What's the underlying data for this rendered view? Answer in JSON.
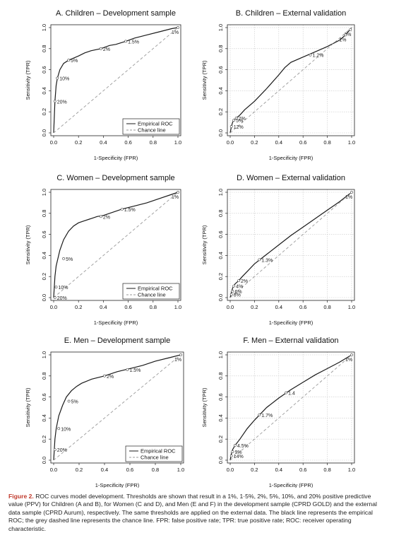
{
  "chart_data": [
    {
      "type": "line",
      "title": "A. Children – Development sample",
      "xlabel": "1-Specificity (FPR)",
      "ylabel": "Sensitivity (TPR)",
      "xlim": [
        0,
        1
      ],
      "ylim": [
        0,
        1
      ],
      "xticks": [
        "0.0",
        "0.2",
        "0.4",
        "0.6",
        "0.8",
        "1.0"
      ],
      "yticks": [
        "0.0",
        "0.2",
        "0.4",
        "0.6",
        "0.8",
        "1.0"
      ],
      "grid": false,
      "legend": {
        "position": "bottom-right",
        "entries": [
          "Empirical ROC",
          "Chance line"
        ]
      },
      "series": [
        {
          "name": "Empirical ROC",
          "x": [
            0,
            0.005,
            0.01,
            0.02,
            0.03,
            0.05,
            0.08,
            0.12,
            0.16,
            0.2,
            0.25,
            0.3,
            0.38,
            0.45,
            0.5,
            0.58,
            0.65,
            0.75,
            0.85,
            0.95,
            1.0
          ],
          "y": [
            0,
            0.15,
            0.3,
            0.45,
            0.52,
            0.6,
            0.66,
            0.69,
            0.71,
            0.73,
            0.76,
            0.78,
            0.8,
            0.83,
            0.84,
            0.87,
            0.9,
            0.93,
            0.96,
            0.99,
            1.0
          ]
        },
        {
          "name": "Chance line",
          "x": [
            0,
            1
          ],
          "y": [
            0,
            1
          ]
        }
      ],
      "thresholds": [
        {
          "label": "1%",
          "x": 1.0,
          "y": 1.0
        },
        {
          "label": "1.5%",
          "x": 0.58,
          "y": 0.87
        },
        {
          "label": "2%",
          "x": 0.38,
          "y": 0.8
        },
        {
          "label": "5%",
          "x": 0.12,
          "y": 0.69
        },
        {
          "label": "10%",
          "x": 0.03,
          "y": 0.52
        },
        {
          "label": "20%",
          "x": 0.01,
          "y": 0.3
        }
      ]
    },
    {
      "type": "line",
      "title": "B. Children – External validation",
      "xlabel": "1-Specificity (FPR)",
      "ylabel": "Sensitivity (TPR)",
      "xlim": [
        0,
        1
      ],
      "ylim": [
        0,
        1
      ],
      "xticks": [
        "0.0",
        "0.2",
        "0.4",
        "0.6",
        "0.8",
        "1.0"
      ],
      "yticks": [
        "0.0",
        "0.2",
        "0.4",
        "0.6",
        "0.8",
        "1.0"
      ],
      "grid": true,
      "series": [
        {
          "name": "Empirical ROC",
          "x": [
            0,
            0.01,
            0.02,
            0.03,
            0.05,
            0.08,
            0.12,
            0.2,
            0.3,
            0.4,
            0.45,
            0.5,
            0.6,
            0.7,
            0.8,
            0.9,
            0.95,
            1.0
          ],
          "y": [
            0,
            0.06,
            0.1,
            0.12,
            0.14,
            0.17,
            0.22,
            0.3,
            0.42,
            0.55,
            0.62,
            0.67,
            0.72,
            0.77,
            0.82,
            0.88,
            0.93,
            1.0
          ]
        },
        {
          "name": "Chance line",
          "x": [
            0,
            1
          ],
          "y": [
            0,
            1
          ]
        }
      ],
      "thresholds": [
        {
          "label": "1%",
          "x": 0.99,
          "y": 0.98
        },
        {
          "label": "1%",
          "x": 0.95,
          "y": 0.93
        },
        {
          "label": "1.2%",
          "x": 0.66,
          "y": 0.74
        },
        {
          "label": "2%",
          "x": 0.05,
          "y": 0.14
        },
        {
          "label": "5%",
          "x": 0.03,
          "y": 0.12
        },
        {
          "label": "12%",
          "x": 0.01,
          "y": 0.06
        }
      ]
    },
    {
      "type": "line",
      "title": "C. Women – Development sample",
      "xlabel": "1-Specificity (FPR)",
      "ylabel": "Sensitivity (TPR)",
      "xlim": [
        0,
        1
      ],
      "ylim": [
        0,
        1
      ],
      "xticks": [
        "0.0",
        "0.2",
        "0.4",
        "0.6",
        "0.8",
        "1.0"
      ],
      "yticks": [
        "0.0",
        "0.2",
        "0.4",
        "0.6",
        "0.8",
        "1.0"
      ],
      "grid": false,
      "legend": {
        "position": "bottom-right",
        "entries": [
          "Empirical ROC",
          "Chance line"
        ]
      },
      "series": [
        {
          "name": "Empirical ROC",
          "x": [
            0,
            0.005,
            0.01,
            0.02,
            0.05,
            0.08,
            0.12,
            0.16,
            0.2,
            0.25,
            0.3,
            0.35,
            0.4,
            0.5,
            0.55,
            0.65,
            0.75,
            0.85,
            0.95,
            1.0
          ],
          "y": [
            0,
            0.1,
            0.2,
            0.3,
            0.45,
            0.55,
            0.63,
            0.68,
            0.71,
            0.73,
            0.75,
            0.77,
            0.78,
            0.82,
            0.84,
            0.87,
            0.9,
            0.94,
            0.98,
            1.0
          ]
        },
        {
          "name": "Chance line",
          "x": [
            0,
            1
          ],
          "y": [
            0,
            1
          ]
        }
      ],
      "thresholds": [
        {
          "label": "1%",
          "x": 1.0,
          "y": 1.0
        },
        {
          "label": "1.5%",
          "x": 0.55,
          "y": 0.84
        },
        {
          "label": "2%",
          "x": 0.38,
          "y": 0.77
        },
        {
          "label": "5%",
          "x": 0.08,
          "y": 0.37
        },
        {
          "label": "10%",
          "x": 0.02,
          "y": 0.1
        },
        {
          "label": "20%",
          "x": 0.01,
          "y": 0.0
        }
      ]
    },
    {
      "type": "line",
      "title": "D. Women – External validation",
      "xlabel": "1-Specificity (FPR)",
      "ylabel": "Sensitivity (TPR)",
      "xlim": [
        0,
        1
      ],
      "ylim": [
        0,
        1
      ],
      "xticks": [
        "0.0",
        "0.2",
        "0.4",
        "0.6",
        "0.8",
        "1.0"
      ],
      "yticks": [
        "0.0",
        "0.2",
        "0.4",
        "0.6",
        "0.8",
        "1.0"
      ],
      "grid": true,
      "series": [
        {
          "name": "Empirical ROC",
          "x": [
            0,
            0.01,
            0.02,
            0.04,
            0.07,
            0.1,
            0.15,
            0.2,
            0.3,
            0.4,
            0.5,
            0.6,
            0.7,
            0.8,
            0.9,
            1.0
          ],
          "y": [
            0,
            0.05,
            0.09,
            0.13,
            0.16,
            0.2,
            0.26,
            0.32,
            0.41,
            0.5,
            0.59,
            0.67,
            0.75,
            0.83,
            0.91,
            1.0
          ]
        },
        {
          "name": "Chance line",
          "x": [
            0,
            1
          ],
          "y": [
            0,
            1
          ]
        }
      ],
      "thresholds": [
        {
          "label": "1%",
          "x": 1.0,
          "y": 1.0
        },
        {
          "label": "1.3%",
          "x": 0.24,
          "y": 0.36
        },
        {
          "label": "2%",
          "x": 0.07,
          "y": 0.16
        },
        {
          "label": "4%",
          "x": 0.03,
          "y": 0.11
        },
        {
          "label": "6%",
          "x": 0.02,
          "y": 0.06
        },
        {
          "label": "8%",
          "x": 0.01,
          "y": 0.03
        }
      ]
    },
    {
      "type": "line",
      "title": "E. Men – Development sample",
      "xlabel": "1-Specificity (FPR)",
      "ylabel": "Sensitivity (TPR)",
      "xlim": [
        0,
        1
      ],
      "ylim": [
        0,
        1
      ],
      "xticks": [
        "0.0",
        "0.2",
        "0.4",
        "0.6",
        "0.8",
        "1.0"
      ],
      "yticks": [
        "0.0",
        "0.2",
        "0.4",
        "0.6",
        "0.8",
        "1.0"
      ],
      "grid": false,
      "legend": {
        "position": "bottom-right",
        "entries": [
          "Empirical ROC",
          "Chance line"
        ]
      },
      "series": [
        {
          "name": "Empirical ROC",
          "x": [
            0,
            0.005,
            0.01,
            0.02,
            0.04,
            0.07,
            0.1,
            0.14,
            0.18,
            0.22,
            0.3,
            0.4,
            0.5,
            0.6,
            0.7,
            0.8,
            0.9,
            1.0
          ],
          "y": [
            0,
            0.1,
            0.2,
            0.3,
            0.42,
            0.52,
            0.6,
            0.66,
            0.7,
            0.73,
            0.77,
            0.8,
            0.84,
            0.87,
            0.9,
            0.94,
            0.97,
            1.0
          ]
        },
        {
          "name": "Chance line",
          "x": [
            0,
            1
          ],
          "y": [
            0,
            1
          ]
        }
      ],
      "thresholds": [
        {
          "label": "1%",
          "x": 1.0,
          "y": 1.0
        },
        {
          "label": "1.5%",
          "x": 0.58,
          "y": 0.86
        },
        {
          "label": "2%",
          "x": 0.4,
          "y": 0.8
        },
        {
          "label": "5%",
          "x": 0.12,
          "y": 0.56
        },
        {
          "label": "10%",
          "x": 0.04,
          "y": 0.3
        },
        {
          "label": "20%",
          "x": 0.01,
          "y": 0.1
        }
      ]
    },
    {
      "type": "line",
      "title": "F. Men – External validation",
      "xlabel": "1-Specificity (FPR)",
      "ylabel": "Sensitivity (TPR)",
      "xlim": [
        0,
        1
      ],
      "ylim": [
        0,
        1
      ],
      "xticks": [
        "0.0",
        "0.2",
        "0.4",
        "0.6",
        "0.8",
        "1.0"
      ],
      "yticks": [
        "0.0",
        "0.2",
        "0.4",
        "0.6",
        "0.8",
        "1.0"
      ],
      "grid": true,
      "series": [
        {
          "name": "Empirical ROC",
          "x": [
            0,
            0.01,
            0.02,
            0.04,
            0.08,
            0.14,
            0.2,
            0.25,
            0.3,
            0.4,
            0.5,
            0.6,
            0.7,
            0.8,
            0.9,
            1.0
          ],
          "y": [
            0,
            0.06,
            0.1,
            0.14,
            0.2,
            0.3,
            0.38,
            0.44,
            0.5,
            0.59,
            0.67,
            0.74,
            0.81,
            0.87,
            0.93,
            1.0
          ]
        },
        {
          "name": "Chance line",
          "x": [
            0,
            1
          ],
          "y": [
            0,
            1
          ]
        }
      ],
      "thresholds": [
        {
          "label": "1%",
          "x": 1.0,
          "y": 1.0
        },
        {
          "label": "1.4",
          "x": 0.46,
          "y": 0.64
        },
        {
          "label": "1.7%",
          "x": 0.24,
          "y": 0.43
        },
        {
          "label": "4.5%",
          "x": 0.04,
          "y": 0.14
        },
        {
          "label": "9%",
          "x": 0.02,
          "y": 0.08
        },
        {
          "label": "14%",
          "x": 0.01,
          "y": 0.04
        }
      ]
    }
  ],
  "caption": {
    "label": "Figure 2.",
    "text": " ROC curves model development. Thresholds are shown that result in a 1%, 1·5%, 2%, 5%, 10%, and 20% positive predictive value (PPV) for Children (A and B), for Women (C and D), and Men (E and F) in the development sample (CPRD GOLD) and the external data sample (CPRD Aurum), respectively. The same thresholds are applied on the external data. The black line represents the empirical ROC; the grey dashed line represents the chance line. FPR: false positive rate; TPR: true positive rate; ROC: receiver operating characteristic."
  },
  "colors": {
    "roc": "#1a1a1a",
    "chance": "#9a9a9a",
    "grid": "#c8c8c8",
    "caption_label": "#c0392b"
  }
}
